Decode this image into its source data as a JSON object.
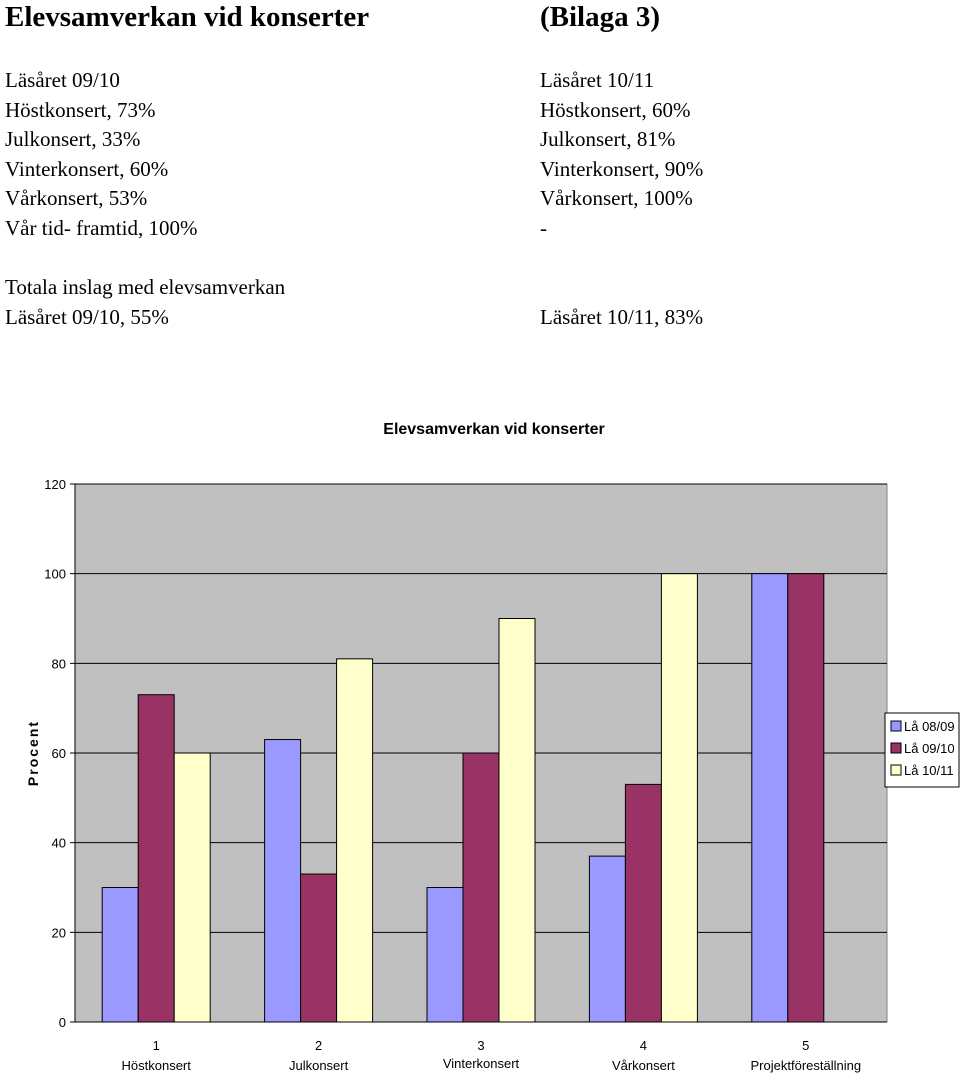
{
  "document": {
    "title": "Elevsamverkan vid konserter",
    "annex": "(Bilaga 3)",
    "left_column": [
      "Läsåret 09/10",
      "Höstkonsert, 73%",
      "Julkonsert, 33%",
      "Vinterkonsert, 60%",
      "Vårkonsert, 53%",
      "Vår tid- framtid, 100%"
    ],
    "right_column": [
      "Läsåret 10/11",
      "Höstkonsert, 60%",
      "Julkonsert, 81%",
      "Vinterkonsert, 90%",
      "Vårkonsert, 100%",
      "-"
    ],
    "totals_heading": "Totala inslag med elevsamverkan",
    "totals_left": "Läsåret 09/10, 55%",
    "totals_right": "Läsåret 10/11, 83%"
  },
  "chart_data": {
    "type": "bar",
    "title": "Elevsamverkan vid konserter",
    "xlabel": "",
    "ylabel": "Procent",
    "ylim": [
      0,
      120
    ],
    "yticks": [
      0,
      20,
      40,
      60,
      80,
      100,
      120
    ],
    "categories": [
      "1",
      "2",
      "3",
      "4",
      "5"
    ],
    "category_sublabels": [
      "Höstkonsert",
      "Julkonsert",
      "Vinterkonsert",
      "Vårkonsert",
      "Projektföreställning"
    ],
    "series": [
      {
        "name": "Lå 08/09",
        "color": "#9999ff",
        "values": [
          30,
          63,
          30,
          37,
          100
        ]
      },
      {
        "name": "Lå 09/10",
        "color": "#993366",
        "values": [
          73,
          33,
          60,
          53,
          100
        ]
      },
      {
        "name": "Lå 10/11",
        "color": "#ffffcc",
        "values": [
          60,
          81,
          90,
          100,
          null
        ]
      }
    ],
    "plot_background": "#c0c0c0",
    "grid": true,
    "legend_position": "right"
  }
}
